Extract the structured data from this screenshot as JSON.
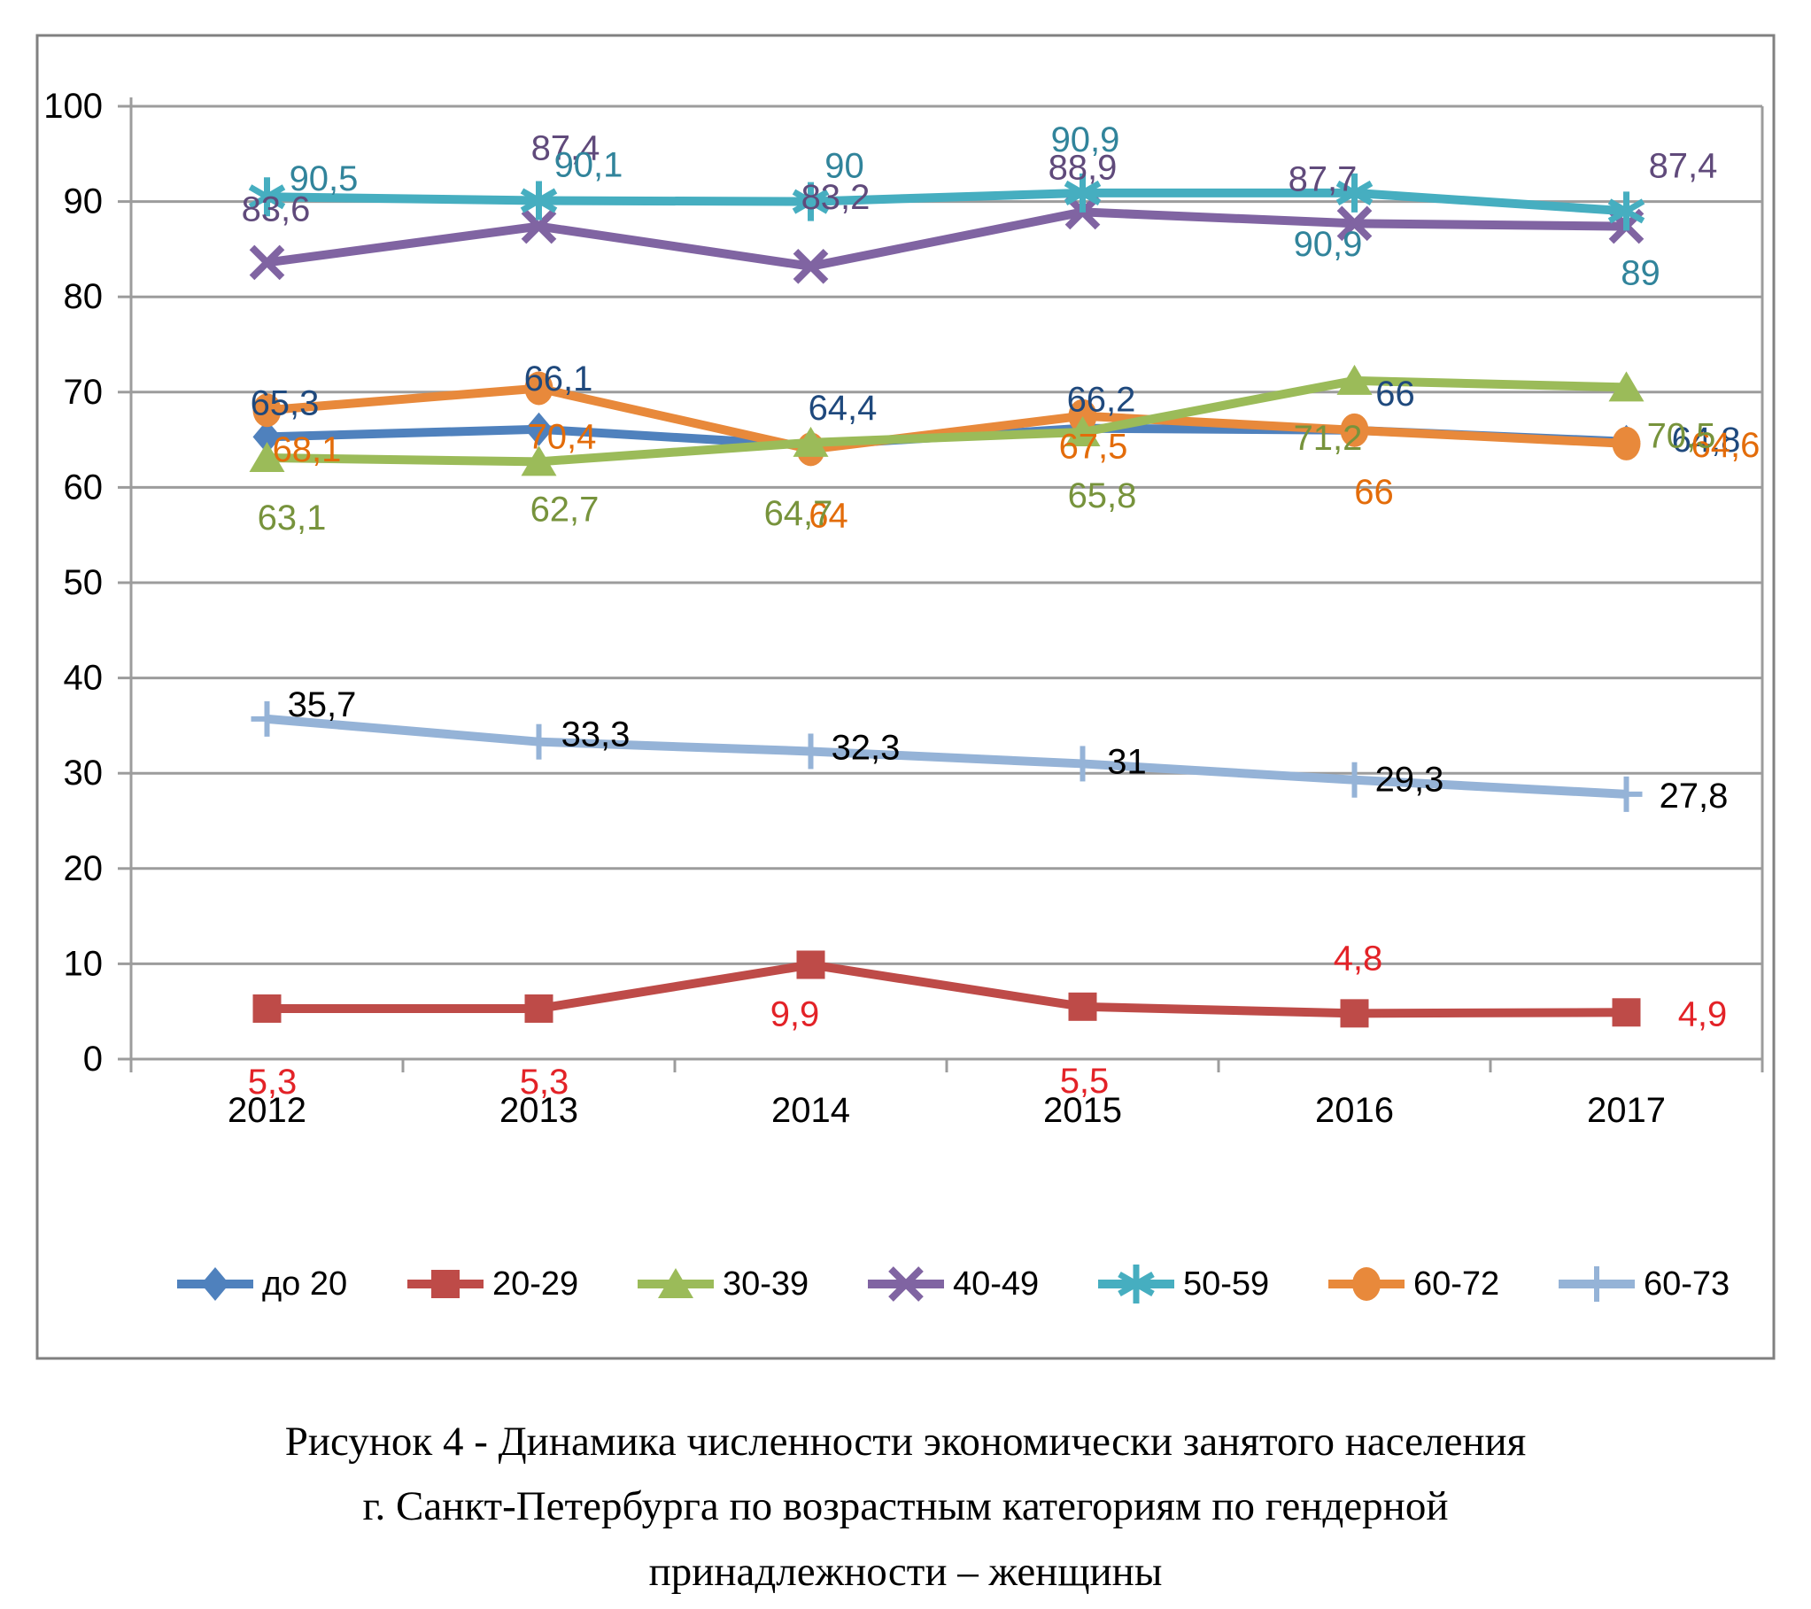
{
  "figure_caption": {
    "line1": "Рисунок 4 - Динамика численности экономически занятого населения",
    "line2": "г. Санкт-Петербурга по возрастным категориям по гендерной",
    "line3": "принадлежности – женщины"
  },
  "colors": {
    "grid": "#9c9c9c",
    "axis": "#9c9c9c",
    "frame_border": "#808080",
    "background": "#ffffff",
    "axis_text": "#000000"
  },
  "chart_data": {
    "type": "line",
    "title": "",
    "xlabel": "",
    "ylabel": "",
    "categories": [
      "2012",
      "2013",
      "2014",
      "2015",
      "2016",
      "2017"
    ],
    "ylim": [
      0,
      100
    ],
    "ytick_step": 10,
    "grid": true,
    "legend_position": "bottom",
    "series": [
      {
        "name": "до 20",
        "marker": "diamond",
        "color": "#4F81BD",
        "label_color": "#1F497D",
        "z": 1,
        "values": [
          65.3,
          66.1,
          64.4,
          66.2,
          66,
          64.8
        ],
        "labels": [
          "65,3",
          "66,1",
          "64,4",
          "66,2",
          "66",
          "64,8"
        ],
        "label_offsets": [
          [
            20,
            -38
          ],
          [
            22,
            -57
          ],
          [
            36,
            -42
          ],
          [
            21,
            -32
          ],
          [
            46,
            -41
          ],
          [
            90,
            -2
          ]
        ]
      },
      {
        "name": "20-29",
        "marker": "square",
        "color": "#BE4B48",
        "label_color": "#E32227",
        "z": 2,
        "values": [
          5.3,
          5.3,
          9.9,
          5.5,
          4.8,
          4.9
        ],
        "labels": [
          "5,3",
          "5,3",
          "9,9",
          "5,5",
          "4,8",
          "4,9"
        ],
        "label_offsets": [
          [
            6,
            83
          ],
          [
            6,
            83
          ],
          [
            -18,
            56
          ],
          [
            2,
            84
          ],
          [
            4,
            -62
          ],
          [
            86,
            2
          ]
        ]
      },
      {
        "name": "30-39",
        "marker": "triangle",
        "color": "#9BBB59",
        "label_color": "#77933C",
        "z": 6,
        "values": [
          63.1,
          62.7,
          64.7,
          65.8,
          71.2,
          70.5
        ],
        "labels": [
          "63,1",
          "62,7",
          "64,7",
          "65,8",
          "71,2",
          "70,5"
        ],
        "label_offsets": [
          [
            28,
            68
          ],
          [
            29,
            54
          ],
          [
            -14,
            80
          ],
          [
            22,
            72
          ],
          [
            -30,
            65
          ],
          [
            62,
            55
          ]
        ]
      },
      {
        "name": "40-49",
        "marker": "x",
        "color": "#8064A2",
        "label_color": "#604A7B",
        "z": 3,
        "values": [
          83.6,
          87.4,
          83.2,
          88.9,
          87.7,
          87.4
        ],
        "labels": [
          "83,6",
          "87,4",
          "83,2",
          "88,9",
          "87,7",
          "87,4"
        ],
        "label_offsets": [
          [
            10,
            -60
          ],
          [
            30,
            -88
          ],
          [
            28,
            -78
          ],
          [
            0,
            -50
          ],
          [
            -36,
            -50
          ],
          [
            64,
            -68
          ]
        ]
      },
      {
        "name": "50-59",
        "marker": "asterisk",
        "color": "#46AEC0",
        "label_color": "#31849B",
        "z": 4,
        "values": [
          90.5,
          90.1,
          90,
          90.9,
          90.9,
          89
        ],
        "labels": [
          "90,5",
          "90,1",
          "90",
          "90,9",
          "90,9",
          "89"
        ],
        "label_offsets": [
          [
            64,
            -20
          ],
          [
            56,
            -40
          ],
          [
            38,
            -40
          ],
          [
            3,
            -60
          ],
          [
            -30,
            58
          ],
          [
            16,
            70
          ]
        ]
      },
      {
        "name": "60-72",
        "marker": "circle",
        "color": "#E8893B",
        "label_color": "#E36C0A",
        "z": 5,
        "values": [
          68.1,
          70.4,
          64,
          67.5,
          66,
          64.6
        ],
        "labels": [
          "68,1",
          "70,4",
          "64",
          "67,5",
          "66",
          "64,6"
        ],
        "label_offsets": [
          [
            45,
            45
          ],
          [
            26,
            55
          ],
          [
            20,
            75
          ],
          [
            12,
            35
          ],
          [
            22,
            70
          ],
          [
            112,
            2
          ]
        ]
      },
      {
        "name": "60-73",
        "marker": "plus",
        "color": "#95B3D7",
        "label_color": "#000000",
        "z": 7,
        "values": [
          35.7,
          33.3,
          32.3,
          31,
          29.3,
          27.8
        ],
        "labels": [
          "35,7",
          "33,3",
          "32,3",
          "31",
          "29,3",
          "27,8"
        ],
        "label_offsets": [
          [
            62,
            -16
          ],
          [
            64,
            -8
          ],
          [
            62,
            -4
          ],
          [
            50,
            -2
          ],
          [
            62,
            0
          ],
          [
            76,
            2
          ]
        ]
      }
    ]
  }
}
